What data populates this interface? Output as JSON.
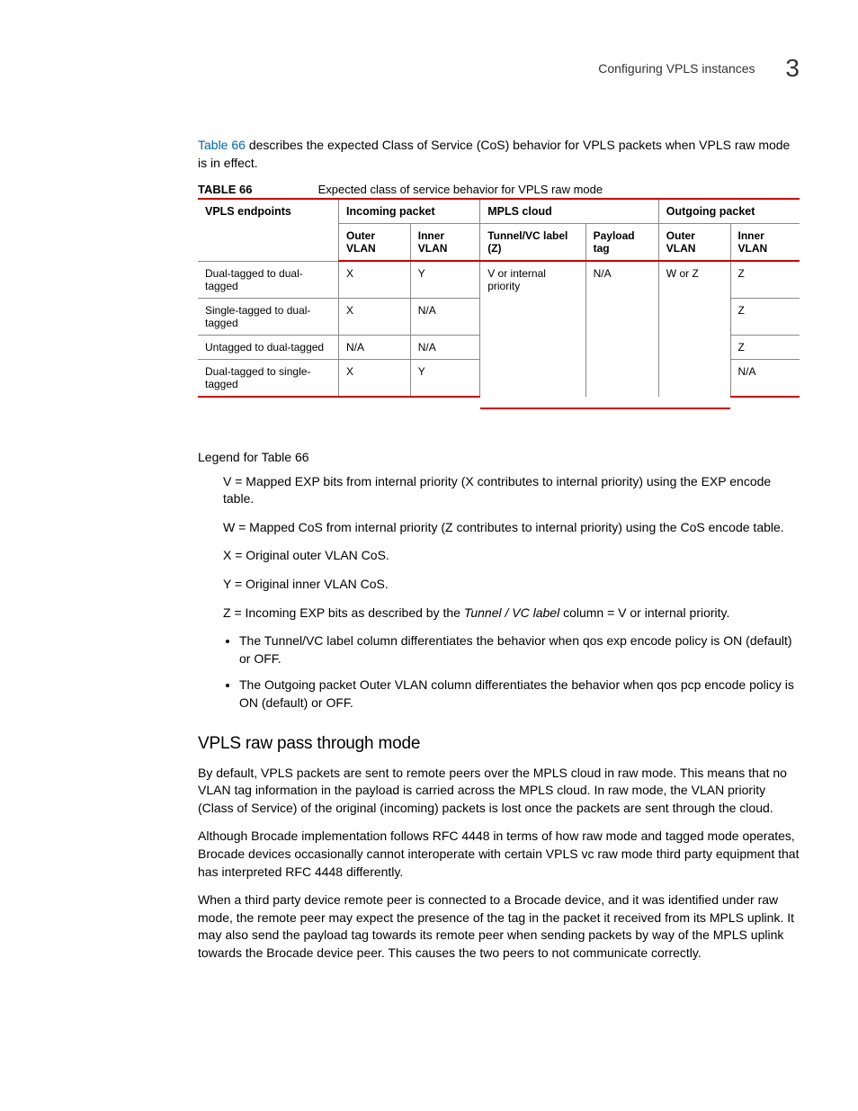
{
  "header": {
    "title": "Configuring VPLS instances",
    "chapter_number": "3"
  },
  "intro": {
    "ref": "Table 66",
    "text": " describes the expected Class of Service (CoS) behavior for VPLS packets when VPLS raw mode is in effect."
  },
  "table": {
    "label": "TABLE 66",
    "caption": "Expected class of service behavior for VPLS raw mode",
    "group_headers": {
      "vpls_endpoints": "VPLS endpoints",
      "incoming": "Incoming packet",
      "mpls": "MPLS cloud",
      "outgoing": "Outgoing packet"
    },
    "sub_headers": {
      "in_outer": "Outer VLAN",
      "in_inner": "Inner VLAN",
      "tunnel": "Tunnel/VC label (Z)",
      "payload": "Payload tag",
      "out_outer": "Outer VLAN",
      "out_inner": "Inner VLAN"
    },
    "rows": [
      {
        "endpoint": "Dual-tagged to dual-tagged",
        "in_outer": "X",
        "in_inner": "Y",
        "tunnel": "V or internal priority",
        "payload": "N/A",
        "out_outer": "W or Z",
        "out_inner": "Z"
      },
      {
        "endpoint": "Single-tagged to dual-tagged",
        "in_outer": "X",
        "in_inner": "N/A",
        "tunnel": "",
        "payload": "",
        "out_outer": "",
        "out_inner": "Z"
      },
      {
        "endpoint": "Untagged to dual-tagged",
        "in_outer": "N/A",
        "in_inner": "N/A",
        "tunnel": "",
        "payload": "",
        "out_outer": "",
        "out_inner": "Z"
      },
      {
        "endpoint": "Dual-tagged to single-tagged",
        "in_outer": "X",
        "in_inner": "Y",
        "tunnel": "",
        "payload": "",
        "out_outer": "",
        "out_inner": "N/A"
      }
    ]
  },
  "legend": {
    "title": "Legend for Table 66",
    "items": {
      "v": "V = Mapped EXP bits from internal priority (X contributes to internal priority) using the EXP encode table.",
      "w": "W = Mapped CoS from internal priority (Z contributes to internal priority) using the CoS encode table.",
      "x": "X = Original outer VLAN CoS.",
      "y": "Y = Original inner VLAN CoS.",
      "z_pre": "Z = Incoming EXP bits as described by the ",
      "z_ital": "Tunnel / VC label",
      "z_post": " column = V or internal priority."
    },
    "bullets": {
      "b1_pre": "The ",
      "b1_ital": "Tunnel/VC label",
      "b1_post": " column differentiates the behavior when qos exp encode policy is ON (default) or OFF.",
      "b2_pre": "The ",
      "b2_ital": "Outgoing packet Outer VLAN",
      "b2_post": " column differentiates the behavior when qos pcp encode policy is ON (default) or OFF."
    }
  },
  "section": {
    "heading": "VPLS raw pass through mode",
    "p1": "By default, VPLS packets are sent to remote peers over the MPLS cloud in raw mode. This means that no VLAN tag information in the payload is carried across the MPLS cloud. In raw mode, the VLAN priority (Class of Service) of the original (incoming) packets is lost once the packets are sent through the cloud.",
    "p2": "Although Brocade implementation follows RFC 4448 in terms of how raw mode and tagged mode operates, Brocade devices occasionally cannot interoperate with certain VPLS vc raw mode third party equipment that has interpreted RFC 4448 differently.",
    "p3": "When a third party device remote peer is connected to a Brocade device, and it was identified under raw mode, the remote peer may expect the presence of the tag in the packet it received from its MPLS uplink. It may also send the payload tag towards its remote peer when sending packets by way of the MPLS uplink towards the Brocade device peer. This causes the two peers to not communicate correctly."
  }
}
